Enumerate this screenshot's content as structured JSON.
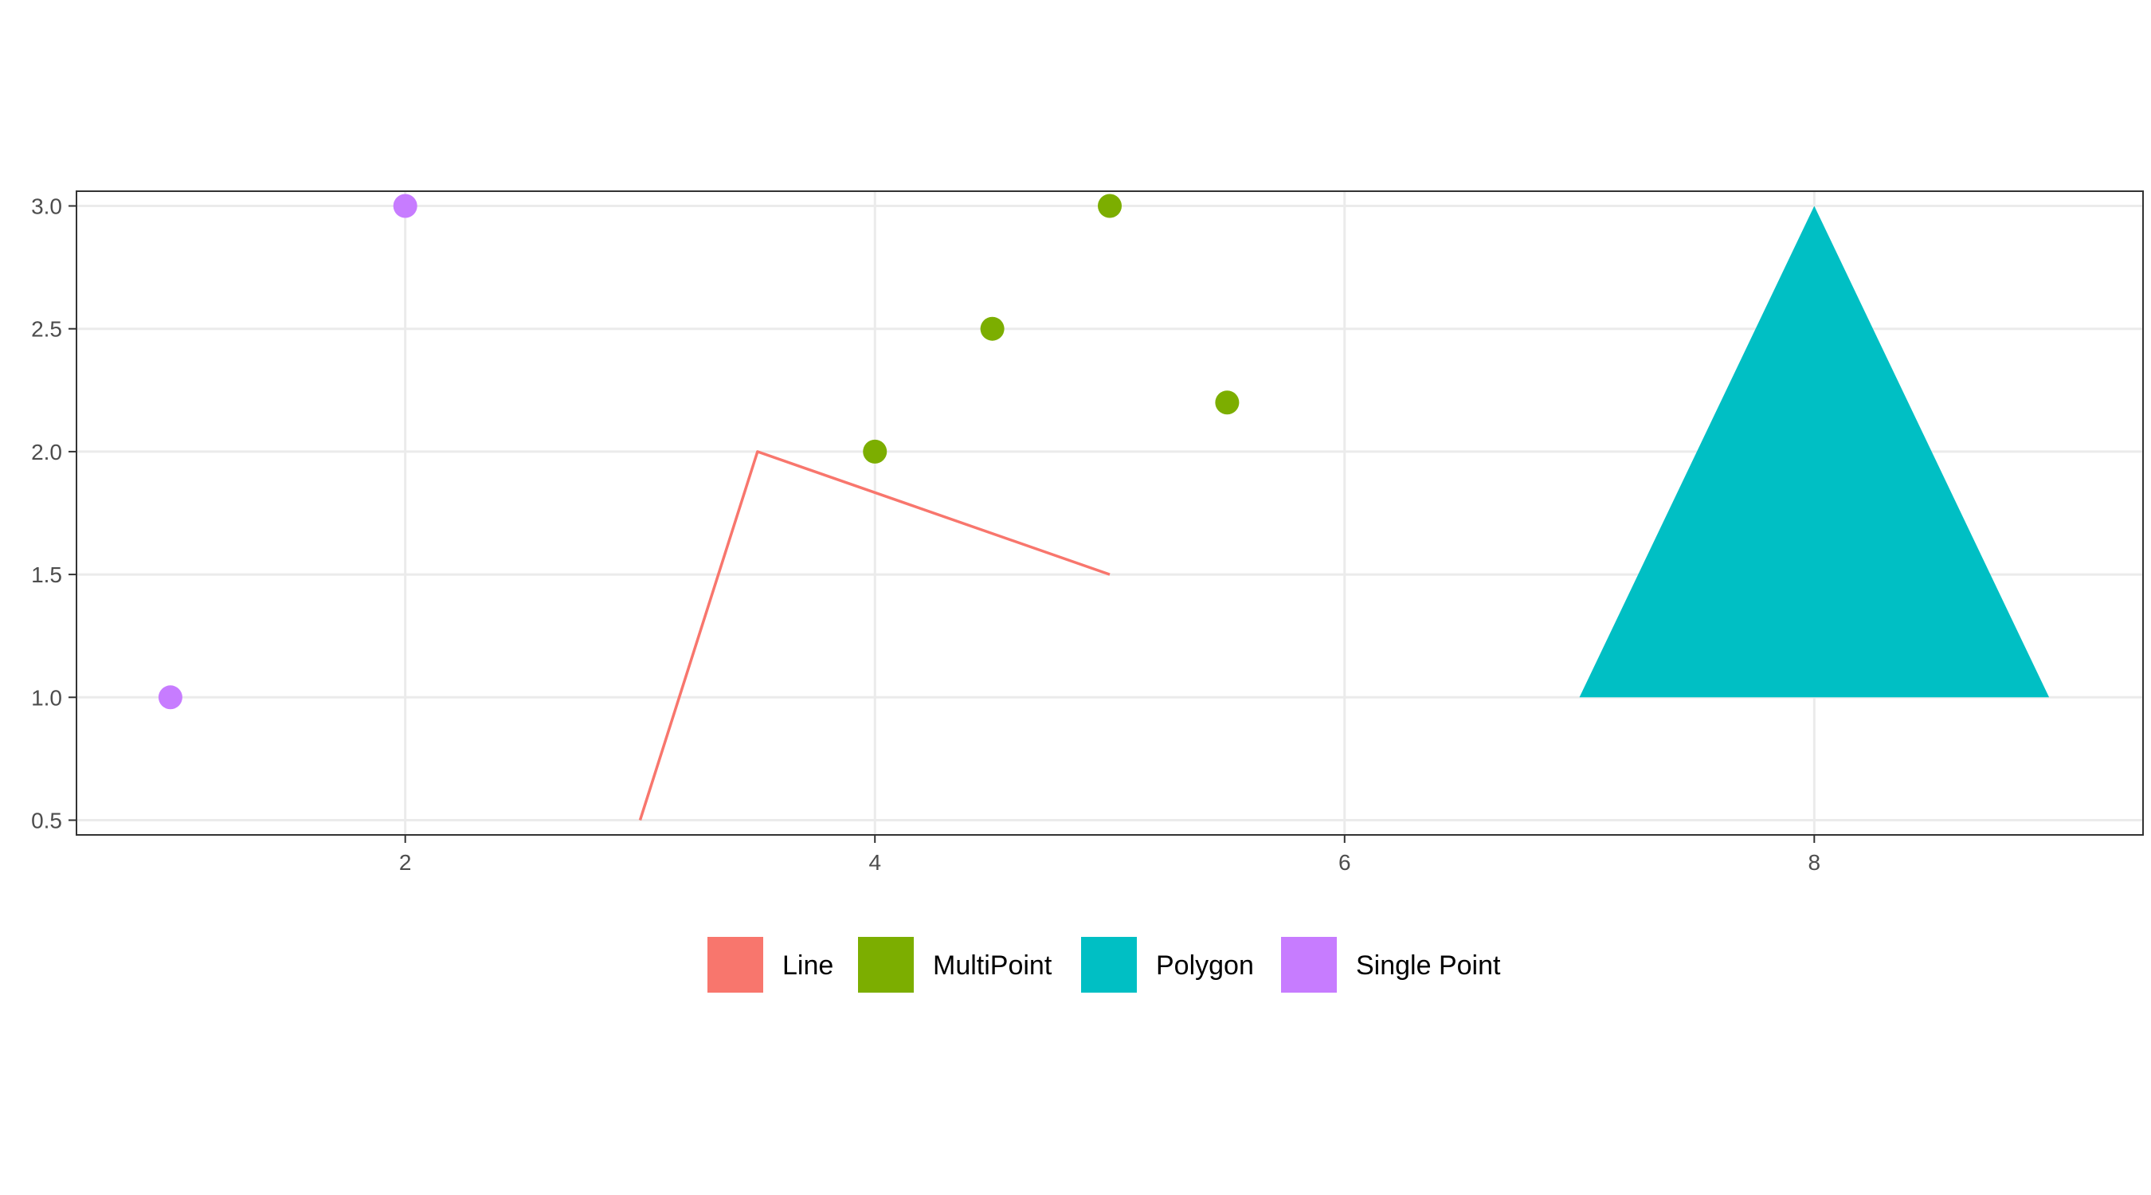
{
  "chart_data": {
    "type": "scatter",
    "title": "",
    "xlabel": "",
    "ylabel": "",
    "xlim": [
      0.6,
      9.4
    ],
    "ylim": [
      0.44,
      3.06
    ],
    "x_ticks": [
      2,
      4,
      6,
      8
    ],
    "x_tick_labels": [
      "2",
      "4",
      "6",
      "8"
    ],
    "y_ticks": [
      0.5,
      1.0,
      1.5,
      2.0,
      2.5,
      3.0
    ],
    "y_tick_labels": [
      "0.5",
      "1.0",
      "1.5",
      "2.0",
      "2.5",
      "3.0"
    ],
    "grid": true,
    "legend_position": "bottom",
    "series": [
      {
        "name": "Line",
        "geometry": "linestring",
        "color": "#F8766D",
        "points": [
          [
            3,
            0.5
          ],
          [
            3.5,
            2.0
          ],
          [
            5,
            1.5
          ]
        ]
      },
      {
        "name": "MultiPoint",
        "geometry": "multipoint",
        "color": "#7CAE00",
        "points": [
          [
            4,
            2.0
          ],
          [
            4.5,
            2.5
          ],
          [
            5,
            3.0
          ],
          [
            5.5,
            2.2
          ]
        ]
      },
      {
        "name": "Polygon",
        "geometry": "polygon",
        "color": "#00BFC4",
        "points": [
          [
            7,
            1.0
          ],
          [
            8,
            3.0
          ],
          [
            9,
            1.0
          ]
        ]
      },
      {
        "name": "Single Point",
        "geometry": "point",
        "color": "#C77CFF",
        "points": [
          [
            1,
            1.0
          ],
          [
            2,
            3.0
          ]
        ]
      }
    ]
  }
}
